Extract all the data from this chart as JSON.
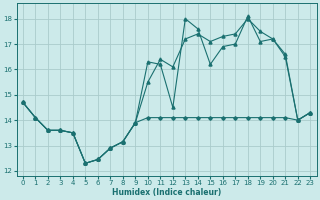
{
  "xlabel": "Humidex (Indice chaleur)",
  "bg_color": "#cceaea",
  "grid_color": "#aacccc",
  "line_color": "#1a7070",
  "xlim": [
    -0.5,
    23.5
  ],
  "ylim": [
    11.8,
    18.6
  ],
  "xticks": [
    0,
    1,
    2,
    3,
    4,
    5,
    6,
    7,
    8,
    9,
    10,
    11,
    12,
    13,
    14,
    15,
    16,
    17,
    18,
    19,
    20,
    21,
    22,
    23
  ],
  "yticks": [
    12,
    13,
    14,
    15,
    16,
    17,
    18
  ],
  "line1_x": [
    0,
    1,
    2,
    3,
    4,
    5,
    6,
    7,
    8,
    9,
    10,
    11,
    12,
    13,
    14,
    15,
    16,
    17,
    18,
    19,
    20,
    21,
    22,
    23
  ],
  "line1_y": [
    14.7,
    14.1,
    13.6,
    13.6,
    13.5,
    12.3,
    12.45,
    12.9,
    13.15,
    13.9,
    14.1,
    14.1,
    14.1,
    14.1,
    14.1,
    14.1,
    14.1,
    14.1,
    14.1,
    14.1,
    14.1,
    14.1,
    14.0,
    14.3
  ],
  "line2_x": [
    0,
    1,
    2,
    3,
    4,
    5,
    6,
    7,
    8,
    9,
    10,
    11,
    12,
    13,
    14,
    15,
    16,
    17,
    18,
    19,
    20,
    21,
    22,
    23
  ],
  "line2_y": [
    14.7,
    14.1,
    13.6,
    13.6,
    13.5,
    12.3,
    12.45,
    12.9,
    13.15,
    13.9,
    15.5,
    16.4,
    16.1,
    17.2,
    17.4,
    17.1,
    17.3,
    17.4,
    18.0,
    17.5,
    17.2,
    16.6,
    14.0,
    14.3
  ],
  "line3_x": [
    0,
    1,
    2,
    3,
    4,
    5,
    6,
    7,
    8,
    9,
    10,
    11,
    12,
    13,
    14,
    15,
    16,
    17,
    18,
    19,
    20,
    21,
    22,
    23
  ],
  "line3_y": [
    14.7,
    14.1,
    13.6,
    13.6,
    13.5,
    12.3,
    12.45,
    12.9,
    13.15,
    13.9,
    16.3,
    16.2,
    14.5,
    18.0,
    17.6,
    16.2,
    16.9,
    17.0,
    18.1,
    17.1,
    17.2,
    16.5,
    14.0,
    14.3
  ]
}
